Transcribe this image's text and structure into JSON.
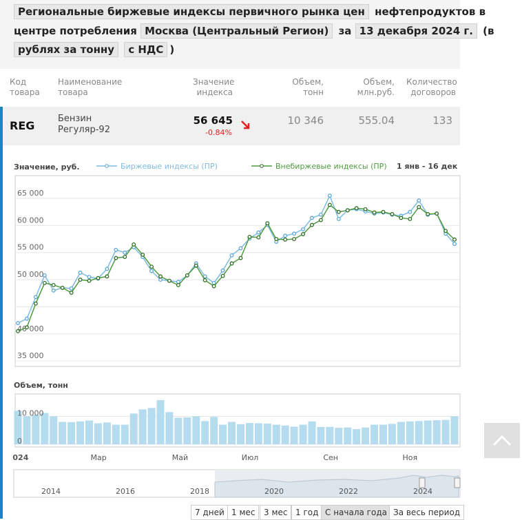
{
  "header": {
    "parts": [
      "Региональные биржевые индексы первичного рынка цен",
      "нефтепродуктов в",
      "центре потребления",
      "Москва (Центральный Регион)",
      "за",
      "13 декабря 2024 г.",
      "(в",
      "рублях за тонну",
      "с НДС",
      ")"
    ]
  },
  "table": {
    "headers": [
      "Код\nтовара",
      "Наименование\nтовара",
      "Значение\nиндекса",
      "Объем,\nтонн",
      "Объем,\nмлн.руб.",
      "Количество\nдоговоров"
    ],
    "row": {
      "code": "REG",
      "name": "Бензин\nРегуляр-92",
      "value": "56 645",
      "change": "-0.84%",
      "volume_t": "10 346",
      "volume_rub": "555.04",
      "deals": "133"
    }
  },
  "chart_data": [
    {
      "type": "line",
      "y_label": "Значение, руб.",
      "range_text": "1 янв - 16 дек",
      "ylim": [
        34000,
        69200
      ],
      "yticks": [
        {
          "value": 35000,
          "label": "35 000"
        },
        {
          "value": 40000,
          "label": "40 000"
        },
        45000,
        {
          "value": 50000,
          "label": "50 000"
        },
        {
          "value": 55000,
          "label": "55 000"
        },
        {
          "value": 60000,
          "label": "60 000"
        },
        {
          "value": 65000,
          "label": "65 000"
        }
      ],
      "grid": true,
      "series": [
        {
          "name": "Биржевые индексы (ПР)",
          "color": "#7dbbe0",
          "values": [
            42000,
            42800,
            46800,
            50800,
            48000,
            48500,
            48400,
            51300,
            50500,
            50200,
            52000,
            55500,
            55000,
            56000,
            54200,
            51600,
            50000,
            49800,
            49600,
            50800,
            53000,
            50600,
            49400,
            51700,
            54500,
            55800,
            57600,
            58700,
            60100,
            57000,
            58100,
            58500,
            59300,
            61400,
            62000,
            65500,
            61200,
            62800,
            63000,
            62600,
            62200,
            62400,
            62000,
            61800,
            62500,
            64600,
            62000,
            62200,
            58500,
            56600
          ]
        },
        {
          "name": "Внебиржевые индексы (ПР)",
          "color": "#4f9a3f",
          "values": [
            40500,
            41200,
            45600,
            49400,
            49000,
            48500,
            47600,
            50000,
            49800,
            50300,
            50600,
            54000,
            54200,
            56500,
            54600,
            52400,
            50600,
            49800,
            49000,
            50800,
            52600,
            49900,
            48800,
            50700,
            53000,
            54000,
            57900,
            57800,
            60400,
            57500,
            57400,
            57500,
            58400,
            60100,
            61000,
            63800,
            62500,
            62800,
            63200,
            63000,
            62400,
            62500,
            62100,
            61400,
            61200,
            63400,
            62100,
            62200,
            59000,
            57400
          ]
        }
      ]
    },
    {
      "type": "bar",
      "y_label": "Объем, тонн",
      "color": "#b5dbef",
      "ylim": [
        0,
        18000
      ],
      "yticks": [
        0,
        {
          "value": 10000,
          "label": "10 000"
        }
      ],
      "values": [
        12000,
        10000,
        10500,
        11200,
        10000,
        8000,
        7900,
        8200,
        8500,
        7500,
        7800,
        7000,
        7000,
        11000,
        12500,
        13000,
        15800,
        11500,
        9500,
        9600,
        10000,
        8300,
        9800,
        7000,
        8000,
        7200,
        7600,
        7500,
        7400,
        7000,
        6700,
        6300,
        7000,
        8200,
        6200,
        6200,
        5900,
        6000,
        5400,
        6000,
        7000,
        7000,
        7300,
        8000,
        8200,
        8300,
        8500,
        8600,
        8700,
        10000
      ],
      "xticks": [
        {
          "value": 0.3,
          "label": "024"
        },
        {
          "value": 9.05,
          "label": "Мар"
        },
        {
          "value": 18.2,
          "label": "Май"
        },
        {
          "value": 26.05,
          "label": "Июл"
        },
        {
          "value": 35.1,
          "label": "Сен"
        },
        {
          "value": 44,
          "label": "Ноя"
        }
      ]
    }
  ],
  "navigator": {
    "years": [
      "2014",
      "2016",
      "2018",
      "2020",
      "2022",
      "2024"
    ]
  },
  "buttons": [
    "7 дней",
    "1 мес",
    "3 мес",
    "1 год",
    "С начала года",
    "За весь период"
  ]
}
